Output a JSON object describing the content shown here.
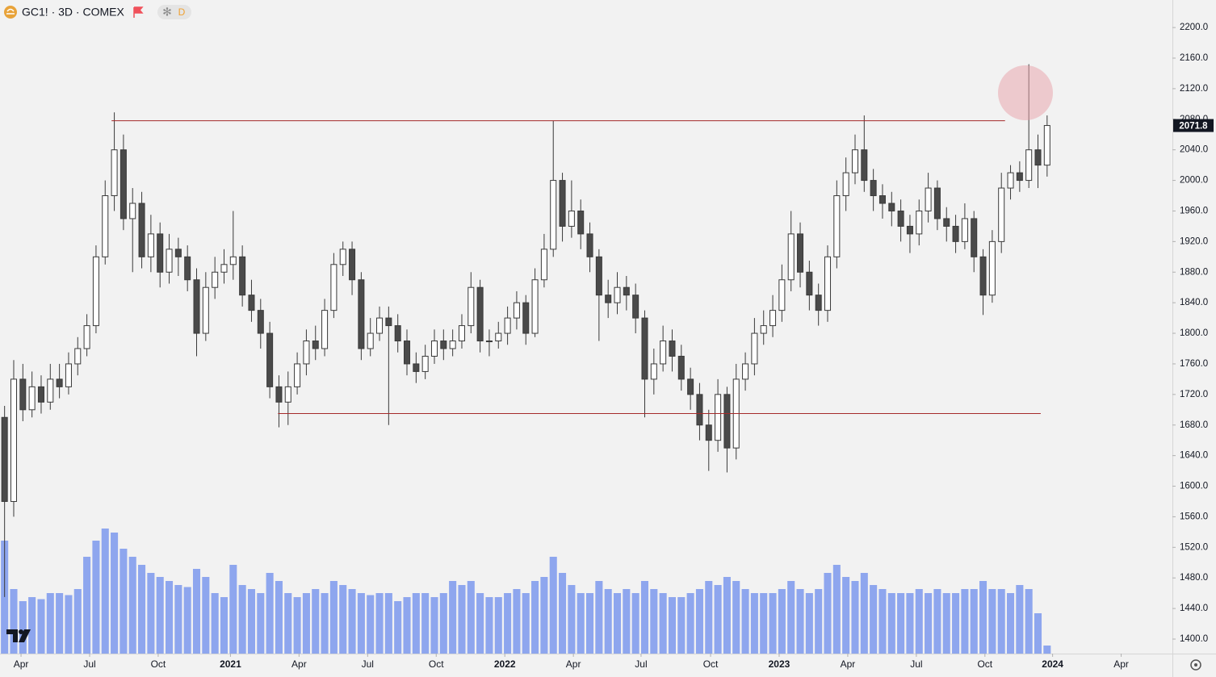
{
  "chart_data": {
    "type": "candlestick",
    "title": "GC1! · 3D · COMEX",
    "badge": "D",
    "last_price": 2071.8,
    "ylim": [
      1381,
      2236
    ],
    "yticks": [
      {
        "value": 1400,
        "label": "1400.0"
      },
      {
        "value": 1440,
        "label": "1440.0"
      },
      {
        "value": 1480,
        "label": "1480.0"
      },
      {
        "value": 1520,
        "label": "1520.0"
      },
      {
        "value": 1560,
        "label": "1560.0"
      },
      {
        "value": 1600,
        "label": "1600.0"
      },
      {
        "value": 1640,
        "label": "1640.0"
      },
      {
        "value": 1680,
        "label": "1680.0"
      },
      {
        "value": 1720,
        "label": "1720.0"
      },
      {
        "value": 1760,
        "label": "1760.0"
      },
      {
        "value": 1800,
        "label": "1800.0"
      },
      {
        "value": 1840,
        "label": "1840.0"
      },
      {
        "value": 1880,
        "label": "1880.0"
      },
      {
        "value": 1920,
        "label": "1920.0"
      },
      {
        "value": 1960,
        "label": "1960.0"
      },
      {
        "value": 2000,
        "label": "2000.0"
      },
      {
        "value": 2040,
        "label": "2040.0"
      },
      {
        "value": 2080,
        "label": "2080.0"
      },
      {
        "value": 2120,
        "label": "2120.0"
      },
      {
        "value": 2160,
        "label": "2160.0"
      },
      {
        "value": 2200,
        "label": "2200.0"
      }
    ],
    "xlim": [
      0,
      128.2
    ],
    "xticks": [
      {
        "value": 2.3,
        "label": "Apr"
      },
      {
        "value": 9.8,
        "label": "Jul"
      },
      {
        "value": 17.3,
        "label": "Oct"
      },
      {
        "value": 25.2,
        "label": "2021"
      },
      {
        "value": 32.7,
        "label": "Apr"
      },
      {
        "value": 40.2,
        "label": "Jul"
      },
      {
        "value": 47.7,
        "label": "Oct"
      },
      {
        "value": 55.2,
        "label": "2022"
      },
      {
        "value": 62.7,
        "label": "Apr"
      },
      {
        "value": 70.1,
        "label": "Jul"
      },
      {
        "value": 77.7,
        "label": "Oct"
      },
      {
        "value": 85.2,
        "label": "2023"
      },
      {
        "value": 92.7,
        "label": "Apr"
      },
      {
        "value": 100.2,
        "label": "Jul"
      },
      {
        "value": 107.7,
        "label": "Oct"
      },
      {
        "value": 115.1,
        "label": "2024"
      },
      {
        "value": 122.6,
        "label": "Apr"
      }
    ],
    "up_color": "#ffffff",
    "down_color": "#4a4a4a",
    "wick_color": "#3a3a3a",
    "volume_color": "#8ea6ee",
    "volume_lim": [
      0,
      800000
    ],
    "open": [
      1690,
      1580,
      1740,
      1700,
      1730,
      1710,
      1740,
      1730,
      1760,
      1780,
      1810,
      1900,
      1980,
      2040,
      1950,
      1970,
      1900,
      1930,
      1880,
      1910,
      1900,
      1870,
      1800,
      1860,
      1880,
      1890,
      1900,
      1850,
      1830,
      1800,
      1730,
      1710,
      1730,
      1760,
      1790,
      1780,
      1830,
      1890,
      1910,
      1870,
      1780,
      1800,
      1820,
      1810,
      1790,
      1760,
      1750,
      1770,
      1790,
      1780,
      1790,
      1810,
      1860,
      1790,
      1790,
      1800,
      1820,
      1840,
      1800,
      1870,
      1910,
      2000,
      1940,
      1960,
      1930,
      1900,
      1850,
      1840,
      1860,
      1850,
      1820,
      1740,
      1760,
      1790,
      1770,
      1740,
      1720,
      1680,
      1660,
      1720,
      1650,
      1740,
      1760,
      1800,
      1810,
      1830,
      1870,
      1930,
      1880,
      1850,
      1830,
      1900,
      1980,
      2010,
      2040,
      2000,
      1980,
      1970,
      1960,
      1940,
      1930,
      1960,
      1990,
      1950,
      1940,
      1920,
      1950,
      1900,
      1850,
      1920,
      1990,
      2010,
      2000,
      2040,
      2020
    ],
    "high": [
      1705,
      1765,
      1760,
      1750,
      1745,
      1760,
      1760,
      1775,
      1795,
      1825,
      1915,
      2000,
      2089,
      2060,
      1990,
      1985,
      1955,
      1945,
      1930,
      1925,
      1915,
      1885,
      1880,
      1900,
      1910,
      1960,
      1915,
      1870,
      1845,
      1815,
      1745,
      1750,
      1775,
      1805,
      1810,
      1845,
      1905,
      1920,
      1920,
      1880,
      1820,
      1835,
      1835,
      1825,
      1805,
      1775,
      1785,
      1805,
      1805,
      1805,
      1825,
      1880,
      1870,
      1805,
      1815,
      1835,
      1855,
      1850,
      1885,
      1930,
      2078,
      2010,
      2000,
      1975,
      1945,
      1910,
      1870,
      1880,
      1875,
      1865,
      1830,
      1780,
      1810,
      1805,
      1785,
      1755,
      1735,
      1700,
      1740,
      1730,
      1760,
      1775,
      1820,
      1830,
      1850,
      1890,
      1960,
      1945,
      1895,
      1865,
      1915,
      2000,
      2030,
      2060,
      2085,
      2015,
      1995,
      1985,
      1975,
      1955,
      1975,
      2010,
      2000,
      1965,
      1955,
      1970,
      1960,
      1910,
      1935,
      2010,
      2020,
      2025,
      2152,
      2060,
      2085
    ],
    "low": [
      1455,
      1560,
      1685,
      1690,
      1695,
      1700,
      1715,
      1720,
      1745,
      1770,
      1800,
      1890,
      1960,
      1935,
      1880,
      1885,
      1880,
      1860,
      1865,
      1875,
      1855,
      1770,
      1790,
      1845,
      1865,
      1870,
      1835,
      1815,
      1780,
      1715,
      1677,
      1680,
      1720,
      1745,
      1765,
      1770,
      1820,
      1875,
      1850,
      1765,
      1770,
      1790,
      1680,
      1775,
      1745,
      1735,
      1740,
      1760,
      1765,
      1770,
      1780,
      1800,
      1775,
      1770,
      1780,
      1785,
      1805,
      1785,
      1795,
      1860,
      1900,
      1920,
      1925,
      1910,
      1880,
      1790,
      1820,
      1825,
      1830,
      1800,
      1690,
      1720,
      1750,
      1750,
      1725,
      1700,
      1660,
      1620,
      1645,
      1618,
      1635,
      1725,
      1745,
      1785,
      1795,
      1815,
      1855,
      1860,
      1830,
      1810,
      1815,
      1885,
      1960,
      1995,
      1985,
      1960,
      1950,
      1940,
      1920,
      1905,
      1915,
      1945,
      1935,
      1920,
      1905,
      1910,
      1880,
      1824,
      1840,
      1905,
      1975,
      1985,
      1990,
      1990,
      2005
    ],
    "close": [
      1580,
      1740,
      1700,
      1730,
      1710,
      1740,
      1730,
      1760,
      1780,
      1810,
      1900,
      1980,
      2040,
      1950,
      1970,
      1900,
      1930,
      1880,
      1910,
      1900,
      1870,
      1800,
      1860,
      1880,
      1890,
      1900,
      1850,
      1830,
      1800,
      1730,
      1710,
      1730,
      1760,
      1790,
      1780,
      1830,
      1890,
      1910,
      1870,
      1780,
      1800,
      1820,
      1810,
      1790,
      1760,
      1750,
      1770,
      1790,
      1780,
      1790,
      1810,
      1860,
      1790,
      1790,
      1800,
      1820,
      1840,
      1800,
      1870,
      1910,
      2000,
      1940,
      1960,
      1930,
      1900,
      1850,
      1840,
      1860,
      1850,
      1820,
      1740,
      1760,
      1790,
      1770,
      1740,
      1720,
      1680,
      1660,
      1720,
      1650,
      1740,
      1760,
      1800,
      1810,
      1830,
      1870,
      1930,
      1880,
      1850,
      1830,
      1900,
      1980,
      2010,
      2040,
      2000,
      1980,
      1970,
      1960,
      1940,
      1930,
      1960,
      1990,
      1950,
      1940,
      1920,
      1950,
      1900,
      1850,
      1920,
      1990,
      2010,
      2000,
      2040,
      2020,
      2071.8
    ],
    "volume": [
      560000,
      320000,
      260000,
      280000,
      270000,
      300000,
      300000,
      290000,
      320000,
      480000,
      560000,
      620000,
      600000,
      520000,
      480000,
      440000,
      400000,
      380000,
      360000,
      340000,
      330000,
      420000,
      380000,
      300000,
      280000,
      440000,
      340000,
      320000,
      300000,
      400000,
      360000,
      300000,
      280000,
      300000,
      320000,
      300000,
      360000,
      340000,
      320000,
      300000,
      290000,
      300000,
      300000,
      260000,
      280000,
      300000,
      300000,
      280000,
      300000,
      360000,
      340000,
      360000,
      300000,
      280000,
      280000,
      300000,
      320000,
      300000,
      360000,
      380000,
      480000,
      400000,
      340000,
      300000,
      300000,
      360000,
      320000,
      300000,
      320000,
      300000,
      360000,
      320000,
      300000,
      280000,
      280000,
      300000,
      320000,
      360000,
      340000,
      380000,
      360000,
      320000,
      300000,
      300000,
      300000,
      320000,
      360000,
      320000,
      300000,
      320000,
      400000,
      440000,
      380000,
      360000,
      400000,
      340000,
      320000,
      300000,
      300000,
      300000,
      320000,
      300000,
      320000,
      300000,
      300000,
      320000,
      320000,
      360000,
      320000,
      320000,
      300000,
      340000,
      320000,
      200000,
      40000
    ],
    "levels": [
      {
        "value": 2078,
        "start": 12.2,
        "end": 109.9,
        "color": "#a52a2a"
      },
      {
        "value": 1695,
        "start": 30.4,
        "end": 113.8,
        "color": "#a52a2a"
      }
    ]
  }
}
